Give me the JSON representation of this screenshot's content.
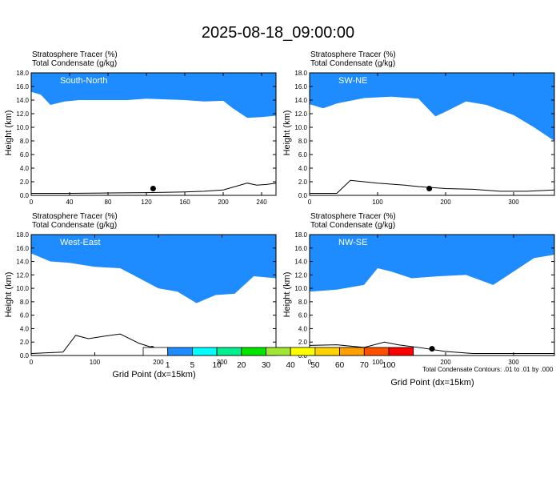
{
  "title": "2025-08-18_09:00:00",
  "panel_header": {
    "line1": "Stratosphere Tracer   (%)",
    "line2": "Total Condensate   (g/kg)"
  },
  "x_axis_label": "Grid Point (dx=15km)",
  "contour_note": "Total Condensate Contours: .01 to .01 by .000",
  "colors": {
    "bins": [
      "#ffffff",
      "#1e8cff",
      "#00ffff",
      "#00f090",
      "#00e600",
      "#a0e632",
      "#ffff00",
      "#ffd200",
      "#ffa000",
      "#ff5000",
      "#ff0000"
    ],
    "panel_label": "#ffffff",
    "axis": "#000000"
  },
  "chart_data": [
    {
      "type": "heatmap",
      "name": "South-North",
      "ylabel": "Height (km)",
      "xlabel": "",
      "xlim": [
        0,
        255
      ],
      "ylim": [
        0,
        18
      ],
      "xticks": [
        0,
        40,
        80,
        120,
        160,
        200,
        240
      ],
      "yticks": [
        "0.0",
        "2.0",
        "4.0",
        "6.0",
        "8.0",
        "10.0",
        "12.0",
        "14.0",
        "16.0",
        "18.0"
      ],
      "marker": {
        "x": 127,
        "y": 1.0
      },
      "tracer_base_km": [
        [
          0,
          15.2
        ],
        [
          10,
          14.8
        ],
        [
          20,
          13.3
        ],
        [
          35,
          13.8
        ],
        [
          50,
          14.0
        ],
        [
          70,
          14.0
        ],
        [
          100,
          14.0
        ],
        [
          120,
          14.2
        ],
        [
          140,
          14.1
        ],
        [
          160,
          14.0
        ],
        [
          180,
          13.8
        ],
        [
          200,
          13.9
        ],
        [
          210,
          12.8
        ],
        [
          225,
          11.4
        ],
        [
          240,
          11.5
        ],
        [
          255,
          11.7
        ]
      ],
      "terrain_km": [
        [
          0,
          0.3
        ],
        [
          40,
          0.3
        ],
        [
          80,
          0.35
        ],
        [
          120,
          0.4
        ],
        [
          160,
          0.5
        ],
        [
          180,
          0.6
        ],
        [
          200,
          0.8
        ],
        [
          215,
          1.4
        ],
        [
          225,
          1.8
        ],
        [
          235,
          1.5
        ],
        [
          245,
          1.6
        ],
        [
          255,
          1.8
        ]
      ]
    },
    {
      "type": "heatmap",
      "name": "SW-NE",
      "ylabel": "Height (km)",
      "xlabel": "",
      "xlim": [
        0,
        360
      ],
      "ylim": [
        0,
        18
      ],
      "xticks": [
        0,
        100,
        200,
        300
      ],
      "yticks": [
        "0.0",
        "2.0",
        "4.0",
        "6.0",
        "8.0",
        "10.0",
        "12.0",
        "14.0",
        "16.0",
        "18.0"
      ],
      "marker": {
        "x": 176,
        "y": 1.0
      },
      "tracer_base_km": [
        [
          0,
          13.4
        ],
        [
          20,
          12.8
        ],
        [
          40,
          13.5
        ],
        [
          80,
          14.3
        ],
        [
          120,
          14.5
        ],
        [
          160,
          14.2
        ],
        [
          185,
          11.6
        ],
        [
          200,
          12.3
        ],
        [
          230,
          13.8
        ],
        [
          260,
          13.3
        ],
        [
          300,
          11.8
        ],
        [
          330,
          10.0
        ],
        [
          360,
          8.0
        ]
      ],
      "terrain_km": [
        [
          0,
          0.3
        ],
        [
          40,
          0.3
        ],
        [
          60,
          2.2
        ],
        [
          80,
          2.0
        ],
        [
          100,
          1.8
        ],
        [
          140,
          1.5
        ],
        [
          160,
          1.3
        ],
        [
          200,
          1.0
        ],
        [
          240,
          0.9
        ],
        [
          280,
          0.6
        ],
        [
          320,
          0.6
        ],
        [
          360,
          0.8
        ]
      ]
    },
    {
      "type": "heatmap",
      "name": "West-East",
      "ylabel": "Height (km)",
      "xlabel": "Grid Point (dx=15km)",
      "xlim": [
        0,
        385
      ],
      "ylim": [
        0,
        18
      ],
      "xticks": [
        0,
        100,
        200,
        300
      ],
      "yticks": [
        "0.0",
        "2.0",
        "4.0",
        "6.0",
        "8.0",
        "10.0",
        "12.0",
        "14.0",
        "16.0",
        "18.0"
      ],
      "marker": {
        "x": 190,
        "y": 1.0
      },
      "tracer_base_km": [
        [
          0,
          15.2
        ],
        [
          30,
          14.0
        ],
        [
          60,
          13.8
        ],
        [
          100,
          13.2
        ],
        [
          140,
          13.0
        ],
        [
          170,
          11.5
        ],
        [
          200,
          10.0
        ],
        [
          230,
          9.5
        ],
        [
          260,
          7.8
        ],
        [
          290,
          9.0
        ],
        [
          320,
          9.2
        ],
        [
          350,
          11.8
        ],
        [
          385,
          11.5
        ]
      ],
      "terrain_km": [
        [
          0,
          0.3
        ],
        [
          50,
          0.5
        ],
        [
          70,
          3.0
        ],
        [
          90,
          2.5
        ],
        [
          110,
          2.8
        ],
        [
          140,
          3.2
        ],
        [
          170,
          1.8
        ],
        [
          200,
          0.9
        ],
        [
          240,
          0.5
        ],
        [
          280,
          0.3
        ],
        [
          385,
          0.3
        ]
      ]
    },
    {
      "type": "heatmap",
      "name": "NW-SE",
      "ylabel": "Height (km)",
      "xlabel": "Grid Point (dx=15km)",
      "xlim": [
        0,
        360
      ],
      "ylim": [
        0,
        18
      ],
      "xticks": [
        0,
        100,
        200,
        300
      ],
      "yticks": [
        "0.0",
        "2.0",
        "4.0",
        "6.0",
        "8.0",
        "10.0",
        "12.0",
        "14.0",
        "16.0",
        "18.0"
      ],
      "marker": {
        "x": 180,
        "y": 1.0
      },
      "tracer_base_km": [
        [
          0,
          9.5
        ],
        [
          40,
          9.8
        ],
        [
          80,
          10.5
        ],
        [
          100,
          13.0
        ],
        [
          120,
          12.5
        ],
        [
          150,
          11.5
        ],
        [
          190,
          11.8
        ],
        [
          230,
          12.0
        ],
        [
          270,
          10.5
        ],
        [
          300,
          12.5
        ],
        [
          330,
          14.5
        ],
        [
          360,
          15.0
        ]
      ],
      "terrain_km": [
        [
          0,
          1.5
        ],
        [
          40,
          1.6
        ],
        [
          80,
          1.2
        ],
        [
          110,
          2.0
        ],
        [
          130,
          1.6
        ],
        [
          160,
          1.2
        ],
        [
          200,
          0.6
        ],
        [
          240,
          0.3
        ],
        [
          360,
          0.3
        ]
      ]
    }
  ],
  "legend": {
    "labels": [
      "1",
      "5",
      "10",
      "20",
      "30",
      "40",
      "50",
      "60",
      "70",
      "100"
    ]
  }
}
